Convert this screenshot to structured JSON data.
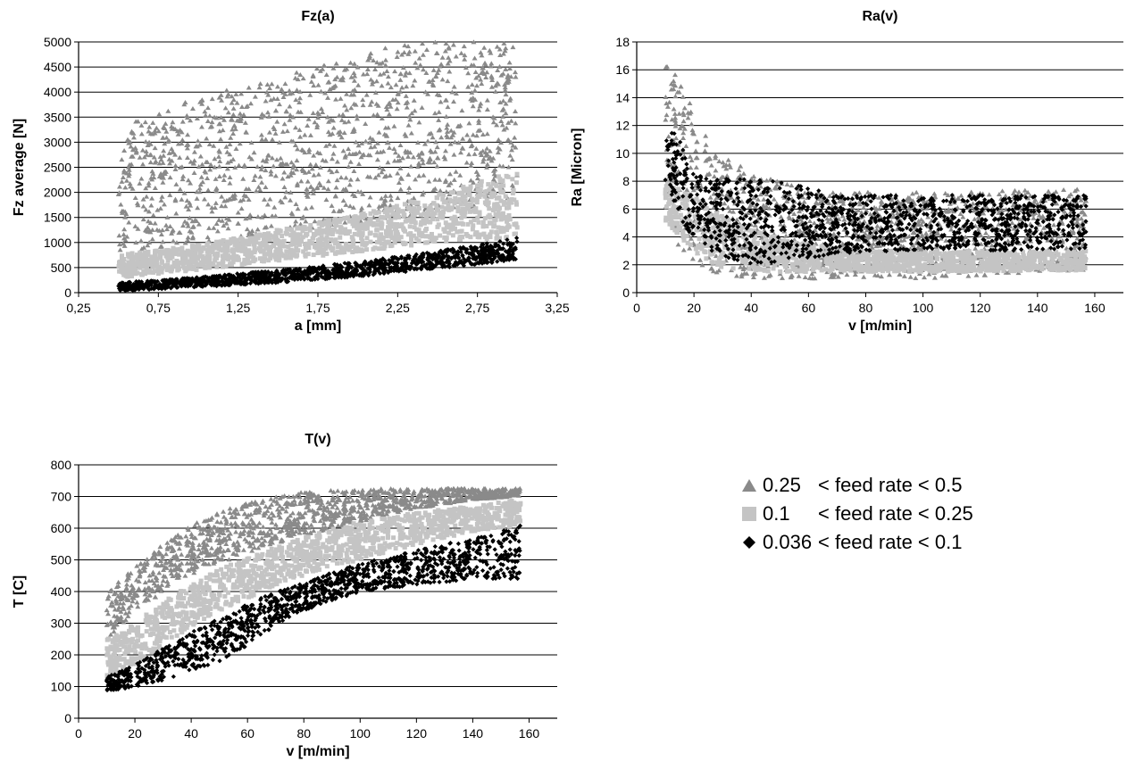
{
  "chart_data": [
    {
      "type": "scatter",
      "title": "Fz(a)",
      "xlabel": "a [mm]",
      "ylabel": "Fz average [N]",
      "xlim": [
        0.25,
        3.25
      ],
      "ylim": [
        0,
        5000
      ],
      "xticks": [
        "0,25",
        "0,75",
        "1,25",
        "1,75",
        "2,25",
        "2,75",
        "3,25"
      ],
      "yticks": [
        "0",
        "500",
        "1000",
        "1500",
        "2000",
        "2500",
        "3000",
        "3500",
        "4000",
        "4500",
        "5000"
      ],
      "grid": "horizontal",
      "series": [
        {
          "name": "0.25 < feed rate < 0.5",
          "color": "#8a8a8a",
          "marker": "triangle",
          "x": [
            0.5,
            0.75,
            1.0,
            1.25,
            1.5,
            1.75,
            2.0,
            2.25,
            2.5,
            2.75,
            3.0
          ],
          "y_low": [
            800,
            900,
            1000,
            1100,
            1200,
            1300,
            1400,
            1500,
            1600,
            1700,
            1800
          ],
          "y_high": [
            3300,
            3600,
            3900,
            4100,
            4300,
            4500,
            4700,
            4950,
            5000,
            5000,
            5000
          ]
        },
        {
          "name": "0.1 < feed rate < 0.25",
          "color": "#c4c4c4",
          "marker": "square",
          "x": [
            0.5,
            0.75,
            1.0,
            1.25,
            1.5,
            1.75,
            2.0,
            2.25,
            2.5,
            2.75,
            3.0
          ],
          "y_low": [
            300,
            380,
            450,
            550,
            640,
            720,
            820,
            910,
            1000,
            1050,
            1100
          ],
          "y_high": [
            750,
            850,
            950,
            1100,
            1250,
            1400,
            1550,
            1750,
            1950,
            2200,
            2450
          ]
        },
        {
          "name": "0.036 < feed rate < 0.1",
          "color": "#000000",
          "marker": "diamond",
          "x": [
            0.5,
            0.75,
            1.0,
            1.25,
            1.5,
            1.75,
            2.0,
            2.25,
            2.5,
            2.75,
            3.0
          ],
          "y_low": [
            30,
            70,
            110,
            150,
            200,
            260,
            320,
            400,
            480,
            560,
            650
          ],
          "y_high": [
            200,
            250,
            310,
            380,
            450,
            530,
            620,
            720,
            830,
            950,
            1100
          ]
        }
      ]
    },
    {
      "type": "scatter",
      "title": "Ra(v)",
      "xlabel": "v [m/min]",
      "ylabel": "Ra [Micron]",
      "xlim": [
        0,
        170
      ],
      "ylim": [
        0,
        18
      ],
      "xticks": [
        "0",
        "20",
        "40",
        "60",
        "80",
        "100",
        "120",
        "140",
        "160"
      ],
      "yticks": [
        "0",
        "2",
        "4",
        "6",
        "8",
        "10",
        "12",
        "14",
        "16",
        "18"
      ],
      "grid": "horizontal",
      "series": [
        {
          "name": "0.25 < feed rate < 0.5",
          "color": "#8a8a8a",
          "marker": "triangle",
          "x": [
            10,
            15,
            20,
            25,
            30,
            40,
            50,
            60,
            70,
            80,
            100,
            120,
            140,
            157
          ],
          "y_low": [
            6.0,
            3.0,
            2.0,
            1.5,
            1.2,
            1.0,
            1.0,
            1.0,
            1.0,
            1.0,
            1.0,
            1.2,
            1.5,
            1.6
          ],
          "y_high": [
            16.5,
            15.5,
            13.0,
            11.0,
            10.0,
            8.5,
            8.0,
            7.5,
            7.2,
            7.2,
            7.2,
            7.3,
            7.4,
            7.4
          ]
        },
        {
          "name": "0.1 < feed rate < 0.25",
          "color": "#c4c4c4",
          "marker": "square",
          "x": [
            10,
            15,
            20,
            25,
            30,
            40,
            50,
            60,
            70,
            80,
            100,
            120,
            140,
            157
          ],
          "y_low": [
            5.0,
            4.0,
            3.0,
            2.2,
            1.8,
            1.6,
            1.5,
            1.5,
            1.5,
            1.5,
            1.5,
            1.5,
            1.6,
            1.6
          ],
          "y_high": [
            8.0,
            7.5,
            7.0,
            6.0,
            5.5,
            4.5,
            4.0,
            3.5,
            3.2,
            3.0,
            3.0,
            3.0,
            3.0,
            3.0
          ]
        },
        {
          "name": "0.036 < feed rate < 0.1",
          "color": "#000000",
          "marker": "diamond",
          "x": [
            10,
            15,
            20,
            25,
            30,
            40,
            50,
            60,
            70,
            80,
            100,
            120,
            140,
            157
          ],
          "y_low": [
            8.0,
            5.0,
            4.0,
            3.0,
            2.5,
            2.0,
            2.0,
            2.5,
            2.8,
            2.9,
            3.0,
            3.0,
            3.0,
            3.0
          ],
          "y_high": [
            12.5,
            11.0,
            8.5,
            8.3,
            8.2,
            8.2,
            8.0,
            7.5,
            7.0,
            7.0,
            7.0,
            7.0,
            7.0,
            7.0
          ]
        }
      ]
    },
    {
      "type": "scatter",
      "title": "T(v)",
      "xlabel": "v [m/min]",
      "ylabel": "T [C]",
      "xlim": [
        0,
        170
      ],
      "ylim": [
        0,
        800
      ],
      "xticks": [
        "0",
        "20",
        "40",
        "60",
        "80",
        "100",
        "120",
        "140",
        "160"
      ],
      "yticks": [
        "0",
        "100",
        "200",
        "300",
        "400",
        "500",
        "600",
        "700",
        "800"
      ],
      "grid": "horizontal",
      "series": [
        {
          "name": "0.25 < feed rate < 0.5",
          "color": "#8a8a8a",
          "marker": "triangle",
          "x": [
            10,
            15,
            20,
            30,
            40,
            50,
            60,
            70,
            80,
            90,
            100,
            120,
            140,
            157
          ],
          "y_low": [
            250,
            290,
            330,
            400,
            450,
            490,
            520,
            550,
            575,
            600,
            620,
            660,
            690,
            700
          ],
          "y_high": [
            400,
            440,
            480,
            550,
            610,
            650,
            680,
            700,
            715,
            720,
            725,
            725,
            725,
            725
          ]
        },
        {
          "name": "0.1 < feed rate < 0.25",
          "color": "#c4c4c4",
          "marker": "square",
          "x": [
            10,
            15,
            20,
            30,
            40,
            50,
            60,
            70,
            80,
            90,
            100,
            120,
            140,
            157
          ],
          "y_low": [
            120,
            140,
            170,
            230,
            290,
            340,
            380,
            420,
            450,
            480,
            500,
            550,
            590,
            610
          ],
          "y_high": [
            250,
            270,
            300,
            370,
            420,
            470,
            510,
            540,
            570,
            600,
            620,
            650,
            670,
            690
          ]
        },
        {
          "name": "0.036 < feed rate < 0.1",
          "color": "#000000",
          "marker": "diamond",
          "x": [
            10,
            15,
            20,
            30,
            40,
            50,
            60,
            70,
            80,
            90,
            100,
            120,
            140,
            157
          ],
          "y_low": [
            85,
            90,
            100,
            120,
            150,
            180,
            230,
            290,
            340,
            370,
            400,
            420,
            440,
            440
          ],
          "y_high": [
            130,
            150,
            170,
            220,
            270,
            320,
            360,
            400,
            430,
            460,
            490,
            530,
            570,
            610
          ]
        }
      ]
    }
  ],
  "legend": {
    "items": [
      {
        "symbol": "triangle",
        "color": "#8a8a8a",
        "value": "0.25",
        "text": "< feed rate < 0.5"
      },
      {
        "symbol": "square",
        "color": "#c4c4c4",
        "value": "0.1",
        "text": "< feed rate < 0.25"
      },
      {
        "symbol": "diamond",
        "color": "#000000",
        "value": "0.036",
        "text": "< feed rate < 0.1"
      }
    ]
  }
}
